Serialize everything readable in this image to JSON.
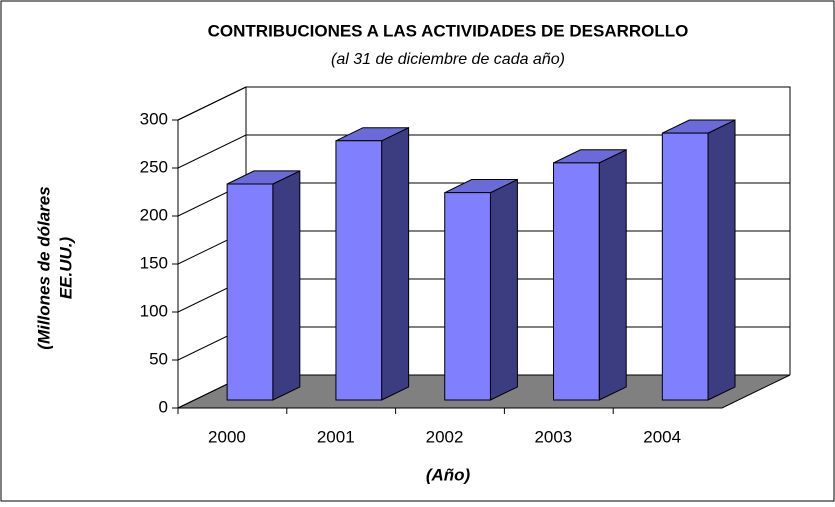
{
  "chart_data": {
    "type": "bar3d",
    "title": "CONTRIBUCIONES A LAS ACTIVIDADES DE DESARROLLO",
    "subtitle": "(al 31 de diciembre de cada año)",
    "y_label": [
      "(Millones de dólares",
      "EE.UU.)"
    ],
    "x_label": "(Año)",
    "categories": [
      "2000",
      "2001",
      "2002",
      "2003",
      "2004"
    ],
    "values": [
      225,
      270,
      216,
      247,
      278
    ],
    "colors": {
      "front": "#8080ff",
      "top": "#6a6ad8",
      "side": "#3c3c80",
      "floor": "#808080"
    },
    "ylim": [
      0,
      300
    ],
    "yticks": [
      0,
      50,
      100,
      150,
      200,
      250,
      300
    ],
    "grid": true
  }
}
